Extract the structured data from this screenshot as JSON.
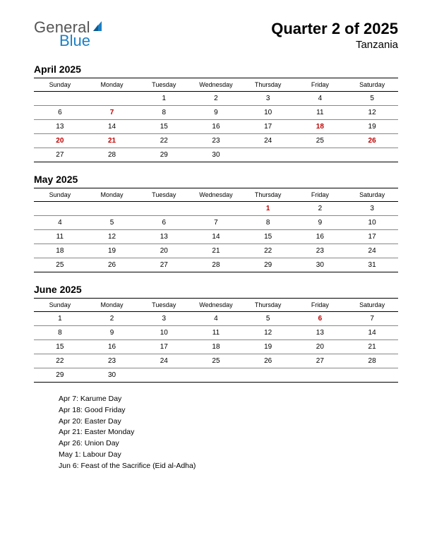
{
  "logo": {
    "line1": "General",
    "line2": "Blue",
    "tri_color": "#1b7fc4"
  },
  "header": {
    "title": "Quarter 2 of 2025",
    "subtitle": "Tanzania"
  },
  "weekdays": [
    "Sunday",
    "Monday",
    "Tuesday",
    "Wednesday",
    "Thursday",
    "Friday",
    "Saturday"
  ],
  "colors": {
    "holiday": "#c00000",
    "text": "#000000",
    "logo_grey": "#555555",
    "logo_blue": "#1b7fc4",
    "grid_line": "#888888",
    "background": "#ffffff"
  },
  "fonts": {
    "title_size": 22,
    "subtitle_size": 15,
    "month_title_size": 14,
    "weekday_size": 9,
    "day_size": 10,
    "holiday_list_size": 10.5,
    "logo_size": 22
  },
  "months": [
    {
      "title": "April 2025",
      "rows": [
        [
          {
            "d": ""
          },
          {
            "d": ""
          },
          {
            "d": "1"
          },
          {
            "d": "2"
          },
          {
            "d": "3"
          },
          {
            "d": "4"
          },
          {
            "d": "5"
          }
        ],
        [
          {
            "d": "6"
          },
          {
            "d": "7",
            "h": true
          },
          {
            "d": "8"
          },
          {
            "d": "9"
          },
          {
            "d": "10"
          },
          {
            "d": "11"
          },
          {
            "d": "12"
          }
        ],
        [
          {
            "d": "13"
          },
          {
            "d": "14"
          },
          {
            "d": "15"
          },
          {
            "d": "16"
          },
          {
            "d": "17"
          },
          {
            "d": "18",
            "h": true
          },
          {
            "d": "19"
          }
        ],
        [
          {
            "d": "20",
            "h": true
          },
          {
            "d": "21",
            "h": true
          },
          {
            "d": "22"
          },
          {
            "d": "23"
          },
          {
            "d": "24"
          },
          {
            "d": "25"
          },
          {
            "d": "26",
            "h": true
          }
        ],
        [
          {
            "d": "27"
          },
          {
            "d": "28"
          },
          {
            "d": "29"
          },
          {
            "d": "30"
          },
          {
            "d": ""
          },
          {
            "d": ""
          },
          {
            "d": ""
          }
        ]
      ]
    },
    {
      "title": "May 2025",
      "rows": [
        [
          {
            "d": ""
          },
          {
            "d": ""
          },
          {
            "d": ""
          },
          {
            "d": ""
          },
          {
            "d": "1",
            "h": true
          },
          {
            "d": "2"
          },
          {
            "d": "3"
          }
        ],
        [
          {
            "d": "4"
          },
          {
            "d": "5"
          },
          {
            "d": "6"
          },
          {
            "d": "7"
          },
          {
            "d": "8"
          },
          {
            "d": "9"
          },
          {
            "d": "10"
          }
        ],
        [
          {
            "d": "11"
          },
          {
            "d": "12"
          },
          {
            "d": "13"
          },
          {
            "d": "14"
          },
          {
            "d": "15"
          },
          {
            "d": "16"
          },
          {
            "d": "17"
          }
        ],
        [
          {
            "d": "18"
          },
          {
            "d": "19"
          },
          {
            "d": "20"
          },
          {
            "d": "21"
          },
          {
            "d": "22"
          },
          {
            "d": "23"
          },
          {
            "d": "24"
          }
        ],
        [
          {
            "d": "25"
          },
          {
            "d": "26"
          },
          {
            "d": "27"
          },
          {
            "d": "28"
          },
          {
            "d": "29"
          },
          {
            "d": "30"
          },
          {
            "d": "31"
          }
        ]
      ]
    },
    {
      "title": "June 2025",
      "rows": [
        [
          {
            "d": "1"
          },
          {
            "d": "2"
          },
          {
            "d": "3"
          },
          {
            "d": "4"
          },
          {
            "d": "5"
          },
          {
            "d": "6",
            "h": true
          },
          {
            "d": "7"
          }
        ],
        [
          {
            "d": "8"
          },
          {
            "d": "9"
          },
          {
            "d": "10"
          },
          {
            "d": "11"
          },
          {
            "d": "12"
          },
          {
            "d": "13"
          },
          {
            "d": "14"
          }
        ],
        [
          {
            "d": "15"
          },
          {
            "d": "16"
          },
          {
            "d": "17"
          },
          {
            "d": "18"
          },
          {
            "d": "19"
          },
          {
            "d": "20"
          },
          {
            "d": "21"
          }
        ],
        [
          {
            "d": "22"
          },
          {
            "d": "23"
          },
          {
            "d": "24"
          },
          {
            "d": "25"
          },
          {
            "d": "26"
          },
          {
            "d": "27"
          },
          {
            "d": "28"
          }
        ],
        [
          {
            "d": "29"
          },
          {
            "d": "30"
          },
          {
            "d": ""
          },
          {
            "d": ""
          },
          {
            "d": ""
          },
          {
            "d": ""
          },
          {
            "d": ""
          }
        ]
      ]
    }
  ],
  "holidays": [
    "Apr 7: Karume Day",
    "Apr 18: Good Friday",
    "Apr 20: Easter Day",
    "Apr 21: Easter Monday",
    "Apr 26: Union Day",
    "May 1: Labour Day",
    "Jun 6: Feast of the Sacrifice (Eid al-Adha)"
  ]
}
